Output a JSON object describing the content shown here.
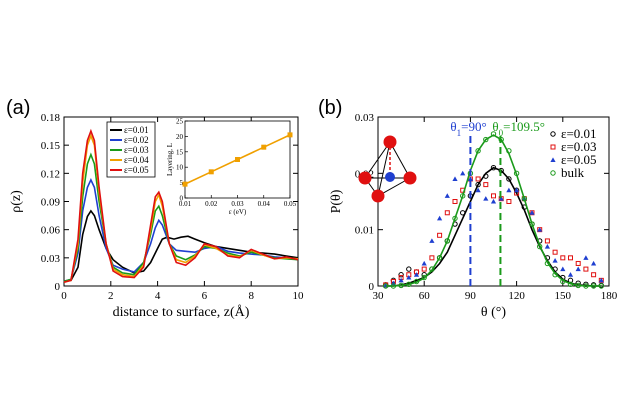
{
  "panel_a_label": "(a)",
  "panel_b_label": "(b)",
  "chart_data": [
    {
      "type": "line",
      "panel": "(a)",
      "xlabel": "distance to surface, z(Å)",
      "ylabel": "ρ(z)",
      "xlim": [
        0,
        10
      ],
      "ylim": [
        0,
        0.18
      ],
      "xticks": [
        0,
        2,
        4,
        6,
        8,
        10
      ],
      "yticks": [
        0,
        0.03,
        0.06,
        0.09,
        0.12,
        0.15,
        0.18
      ],
      "ytick_labels": [
        "0",
        "0.03",
        "0.06",
        "0.09",
        "0.12",
        "0.15",
        "0.18"
      ],
      "legend": "top-center",
      "series": [
        {
          "name": "ε=0.01",
          "color": "#000000",
          "x": [
            0,
            0.3,
            0.6,
            0.8,
            1.0,
            1.15,
            1.3,
            1.5,
            1.8,
            2.1,
            2.5,
            3.0,
            3.4,
            3.7,
            4.0,
            4.2,
            4.4,
            4.7,
            5.0,
            5.3,
            5.6,
            6.0,
            6.5,
            7.0,
            7.5,
            8.0,
            8.5,
            9.0,
            9.5,
            10
          ],
          "y": [
            0.005,
            0.006,
            0.02,
            0.055,
            0.074,
            0.08,
            0.075,
            0.06,
            0.04,
            0.028,
            0.02,
            0.014,
            0.016,
            0.025,
            0.04,
            0.05,
            0.052,
            0.05,
            0.052,
            0.053,
            0.05,
            0.046,
            0.042,
            0.04,
            0.038,
            0.036,
            0.035,
            0.034,
            0.032,
            0.03
          ]
        },
        {
          "name": "ε=0.02",
          "color": "#1f3fd0",
          "x": [
            0,
            0.3,
            0.6,
            0.8,
            1.0,
            1.15,
            1.3,
            1.5,
            1.8,
            2.1,
            2.5,
            3.0,
            3.4,
            3.7,
            3.9,
            4.05,
            4.2,
            4.5,
            4.8,
            5.2,
            5.6,
            6.0,
            6.5,
            7.0,
            7.5,
            8.0,
            8.5,
            9.0,
            9.5,
            10
          ],
          "y": [
            0.005,
            0.007,
            0.035,
            0.08,
            0.105,
            0.113,
            0.105,
            0.075,
            0.04,
            0.022,
            0.018,
            0.015,
            0.025,
            0.045,
            0.062,
            0.07,
            0.065,
            0.045,
            0.038,
            0.037,
            0.036,
            0.04,
            0.042,
            0.037,
            0.035,
            0.034,
            0.033,
            0.031,
            0.03,
            0.028
          ]
        },
        {
          "name": "ε=0.03",
          "color": "#1a9a1a",
          "x": [
            0,
            0.3,
            0.6,
            0.8,
            1.0,
            1.15,
            1.3,
            1.5,
            1.8,
            2.1,
            2.5,
            3.0,
            3.4,
            3.7,
            3.9,
            4.05,
            4.2,
            4.5,
            4.8,
            5.2,
            5.6,
            6.0,
            6.5,
            7.0,
            7.5,
            8.0,
            8.5,
            9.0,
            9.5,
            10
          ],
          "y": [
            0.005,
            0.007,
            0.04,
            0.095,
            0.13,
            0.14,
            0.13,
            0.09,
            0.045,
            0.02,
            0.014,
            0.012,
            0.025,
            0.055,
            0.08,
            0.085,
            0.075,
            0.045,
            0.032,
            0.028,
            0.033,
            0.042,
            0.04,
            0.035,
            0.032,
            0.036,
            0.033,
            0.03,
            0.029,
            0.028
          ]
        },
        {
          "name": "ε=0.04",
          "color": "#f0a000",
          "x": [
            0,
            0.3,
            0.6,
            0.8,
            1.0,
            1.15,
            1.3,
            1.5,
            1.8,
            2.1,
            2.5,
            3.0,
            3.4,
            3.7,
            3.9,
            4.05,
            4.2,
            4.5,
            4.8,
            5.2,
            5.6,
            6.0,
            6.5,
            7.0,
            7.5,
            8.0,
            8.5,
            9.0,
            9.5,
            10
          ],
          "y": [
            0.004,
            0.006,
            0.045,
            0.11,
            0.15,
            0.16,
            0.15,
            0.1,
            0.045,
            0.018,
            0.012,
            0.01,
            0.022,
            0.06,
            0.09,
            0.097,
            0.085,
            0.045,
            0.028,
            0.025,
            0.032,
            0.044,
            0.04,
            0.033,
            0.031,
            0.038,
            0.033,
            0.029,
            0.03,
            0.029
          ]
        },
        {
          "name": "ε=0.05",
          "color": "#e01010",
          "x": [
            0,
            0.3,
            0.6,
            0.8,
            1.0,
            1.15,
            1.3,
            1.5,
            1.8,
            2.1,
            2.5,
            3.0,
            3.4,
            3.7,
            3.9,
            4.05,
            4.2,
            4.5,
            4.8,
            5.2,
            5.6,
            6.0,
            6.5,
            7.0,
            7.5,
            8.0,
            8.5,
            9.0,
            9.5,
            10
          ],
          "y": [
            0.004,
            0.006,
            0.05,
            0.12,
            0.155,
            0.165,
            0.155,
            0.105,
            0.045,
            0.016,
            0.01,
            0.009,
            0.02,
            0.065,
            0.095,
            0.1,
            0.09,
            0.045,
            0.025,
            0.022,
            0.03,
            0.045,
            0.042,
            0.032,
            0.03,
            0.039,
            0.034,
            0.029,
            0.031,
            0.028
          ]
        }
      ],
      "inset": {
        "type": "line",
        "xlabel": "ε (eV)",
        "ylabel": "Layering, L",
        "xlim": [
          0.01,
          0.05
        ],
        "ylim": [
          0,
          25
        ],
        "xticks": [
          0.01,
          0.02,
          0.03,
          0.04,
          0.05
        ],
        "xtick_labels": [
          "0.01",
          "0.02",
          "0.03",
          "0.04",
          "0.05"
        ],
        "yticks": [
          0,
          5,
          10,
          15,
          20,
          25
        ],
        "color": "#f0a000",
        "x": [
          0.01,
          0.02,
          0.03,
          0.04,
          0.05
        ],
        "y": [
          4.5,
          8.5,
          12.5,
          16.5,
          20.5
        ]
      }
    },
    {
      "type": "scatter",
      "panel": "(b)",
      "xlabel": "θ (°)",
      "ylabel": "P(θ)",
      "xlim": [
        30,
        180
      ],
      "ylim": [
        0,
        0.03
      ],
      "xticks": [
        30,
        60,
        90,
        120,
        150,
        180
      ],
      "yticks": [
        0,
        0.01,
        0.02,
        0.03
      ],
      "ytick_labels": [
        "0",
        "0.01",
        "0.02",
        "0.03"
      ],
      "legend": "top-right",
      "annotations": [
        {
          "text": "θ",
          "sub": "1",
          "after": "=90°",
          "x": 90,
          "color": "#1f3fd0"
        },
        {
          "text": "θ",
          "sub": "0",
          "after": "=109.5°",
          "x": 109.5,
          "color": "#1a9a1a"
        }
      ],
      "series": [
        {
          "name": "ε=0.01",
          "color": "#000000",
          "marker": "circle",
          "x": [
            35,
            40,
            45,
            50,
            55,
            60,
            65,
            70,
            75,
            80,
            85,
            90,
            95,
            100,
            105,
            110,
            115,
            120,
            125,
            130,
            135,
            140,
            145,
            150,
            155,
            160,
            165,
            170,
            175
          ],
          "y": [
            0.0002,
            0.001,
            0.002,
            0.003,
            0.0025,
            0.002,
            0.003,
            0.005,
            0.008,
            0.011,
            0.013,
            0.016,
            0.018,
            0.0195,
            0.021,
            0.0205,
            0.019,
            0.017,
            0.014,
            0.011,
            0.008,
            0.005,
            0.003,
            0.0015,
            0.001,
            0.0005,
            0.0003,
            0.0002,
            0.0001
          ],
          "fit_y": [
            0.0,
            0.0,
            0.0002,
            0.0005,
            0.001,
            0.0015,
            0.0025,
            0.004,
            0.006,
            0.009,
            0.012,
            0.015,
            0.018,
            0.02,
            0.021,
            0.0205,
            0.019,
            0.0165,
            0.0135,
            0.01,
            0.007,
            0.0045,
            0.0025,
            0.0012,
            0.0005,
            0.0002,
            0.0001,
            0.0,
            0.0
          ]
        },
        {
          "name": "ε=0.03",
          "color": "#e01010",
          "marker": "square",
          "x": [
            35,
            40,
            45,
            50,
            55,
            60,
            65,
            70,
            75,
            80,
            85,
            90,
            95,
            100,
            105,
            110,
            115,
            120,
            125,
            130,
            135,
            140,
            145,
            150,
            155,
            160,
            165,
            170,
            175
          ],
          "y": [
            0.0002,
            0.0008,
            0.0015,
            0.002,
            0.0025,
            0.003,
            0.005,
            0.009,
            0.013,
            0.015,
            0.017,
            0.019,
            0.019,
            0.018,
            0.016,
            0.0155,
            0.015,
            0.0165,
            0.0155,
            0.013,
            0.01,
            0.008,
            0.006,
            0.005,
            0.005,
            0.004,
            0.003,
            0.002,
            0.001
          ]
        },
        {
          "name": "ε=0.05",
          "color": "#1f3fd0",
          "marker": "triangle",
          "x": [
            35,
            40,
            45,
            50,
            55,
            60,
            65,
            70,
            75,
            80,
            85,
            90,
            95,
            100,
            105,
            110,
            115,
            120,
            125,
            130,
            135,
            140,
            145,
            150,
            155,
            160,
            165,
            170,
            175
          ],
          "y": [
            0.0001,
            0.0005,
            0.001,
            0.0015,
            0.002,
            0.004,
            0.008,
            0.012,
            0.016,
            0.019,
            0.02,
            0.019,
            0.017,
            0.0155,
            0.015,
            0.0155,
            0.017,
            0.017,
            0.0155,
            0.013,
            0.01,
            0.007,
            0.0045,
            0.003,
            0.002,
            0.003,
            0.005,
            0.004,
            0.001
          ]
        },
        {
          "name": "bulk",
          "color": "#1a9a1a",
          "marker": "circle-open",
          "x": [
            35,
            40,
            45,
            50,
            55,
            60,
            65,
            70,
            75,
            80,
            85,
            90,
            95,
            100,
            105,
            110,
            115,
            120,
            125,
            130,
            135,
            140,
            145,
            150,
            155,
            160,
            165,
            170,
            175
          ],
          "y": [
            0.0,
            0.0,
            0.0001,
            0.0003,
            0.0008,
            0.0015,
            0.003,
            0.005,
            0.008,
            0.012,
            0.016,
            0.02,
            0.024,
            0.026,
            0.027,
            0.026,
            0.024,
            0.02,
            0.0155,
            0.011,
            0.007,
            0.004,
            0.002,
            0.0008,
            0.0003,
            0.0001,
            0.0,
            0.0,
            0.0
          ],
          "fit_y": [
            0.0,
            0.0,
            0.0001,
            0.0003,
            0.0007,
            0.0014,
            0.0028,
            0.005,
            0.008,
            0.012,
            0.016,
            0.0205,
            0.024,
            0.026,
            0.0268,
            0.026,
            0.0235,
            0.0198,
            0.0155,
            0.011,
            0.0072,
            0.0042,
            0.0022,
            0.001,
            0.0004,
            0.0001,
            0.0,
            0.0,
            0.0
          ]
        }
      ]
    }
  ]
}
